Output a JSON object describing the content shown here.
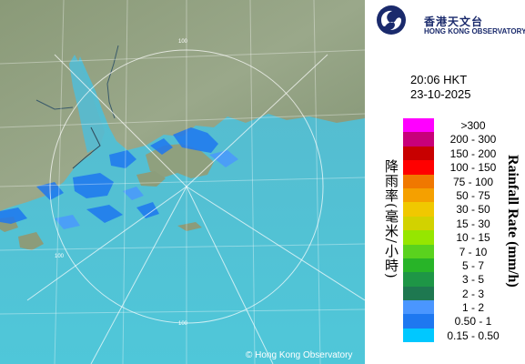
{
  "map": {
    "range_ring_label": "100",
    "copyright": "© Hong Kong Observatory"
  },
  "logo": {
    "icon": "hko-swirl-logo-icon",
    "name_cn": "香港天文台",
    "name_en": "HONG KONG OBSERVATORY",
    "color": "#1a2a6c"
  },
  "timestamp": {
    "time": "20:06 HKT",
    "date": "23-10-2025"
  },
  "legend": {
    "title_en": "Rainfall Rate (mm/h)",
    "title_cn": "降雨率(毫米/小時)",
    "items": [
      {
        "label": ">300",
        "color": "#ff00ff"
      },
      {
        "label": "200 - 300",
        "color": "#c8007a"
      },
      {
        "label": "150 - 200",
        "color": "#c80000"
      },
      {
        "label": "100 - 150",
        "color": "#ff0000"
      },
      {
        "label": "75 - 100",
        "color": "#f07800"
      },
      {
        "label": "50 - 75",
        "color": "#f5a000"
      },
      {
        "label": "30 - 50",
        "color": "#f0c800"
      },
      {
        "label": "15 - 30",
        "color": "#d2d200"
      },
      {
        "label": "10 - 15",
        "color": "#96e600"
      },
      {
        "label": "7 - 10",
        "color": "#5ad21e"
      },
      {
        "label": "5 - 7",
        "color": "#28b428"
      },
      {
        "label": "3 - 5",
        "color": "#1e9646"
      },
      {
        "label": "2 - 3",
        "color": "#1e7850"
      },
      {
        "label": "1 - 2",
        "color": "#4a96ff"
      },
      {
        "label": "0.50 - 1",
        "color": "#1e78f0"
      },
      {
        "label": "0.15 - 0.50",
        "color": "#00c8ff"
      }
    ]
  }
}
